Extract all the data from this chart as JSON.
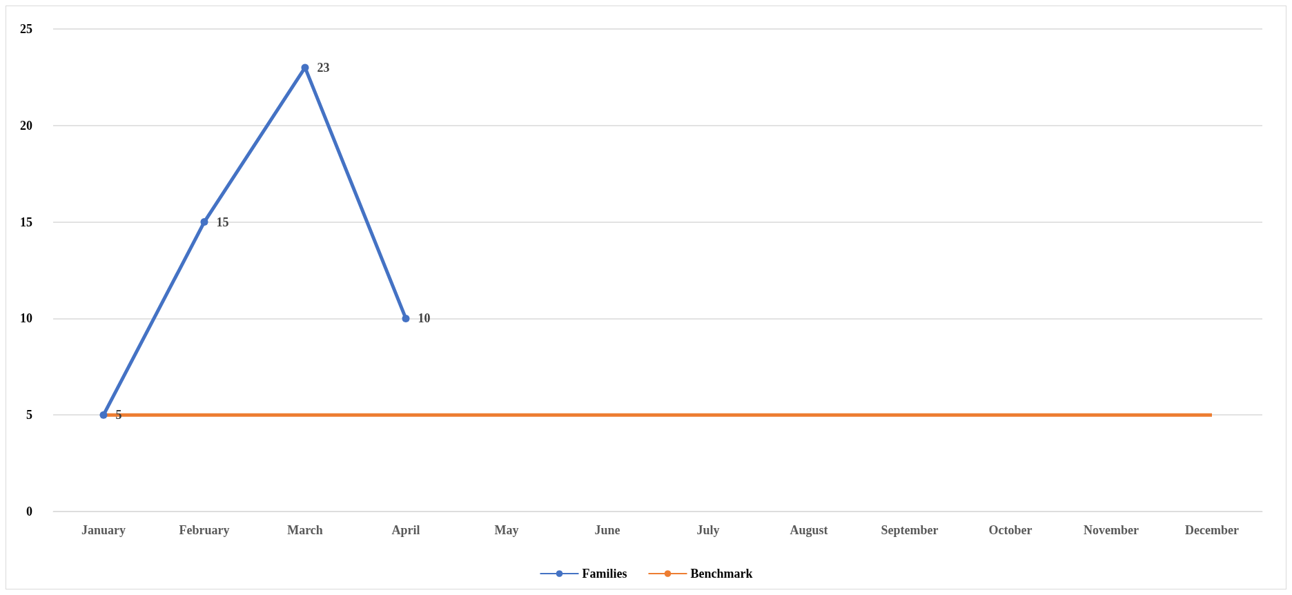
{
  "chart_data": {
    "type": "line",
    "categories": [
      "January",
      "February",
      "March",
      "April",
      "May",
      "June",
      "July",
      "August",
      "September",
      "October",
      "November",
      "December"
    ],
    "series": [
      {
        "name": "Families",
        "color": "#4472c4",
        "marker": "circle",
        "values": [
          5,
          15,
          23,
          10,
          null,
          null,
          null,
          null,
          null,
          null,
          null,
          null
        ],
        "value_labels": [
          "5",
          "15",
          "23",
          "10",
          null,
          null,
          null,
          null,
          null,
          null,
          null,
          null
        ]
      },
      {
        "name": "Benchmark",
        "color": "#ed7d31",
        "marker": "none",
        "values": [
          5,
          5,
          5,
          5,
          5,
          5,
          5,
          5,
          5,
          5,
          5,
          5
        ]
      }
    ],
    "ylim": [
      0,
      25
    ],
    "yticks": [
      0,
      5,
      10,
      15,
      20,
      25
    ],
    "grid": "y",
    "legend": "bottom"
  }
}
